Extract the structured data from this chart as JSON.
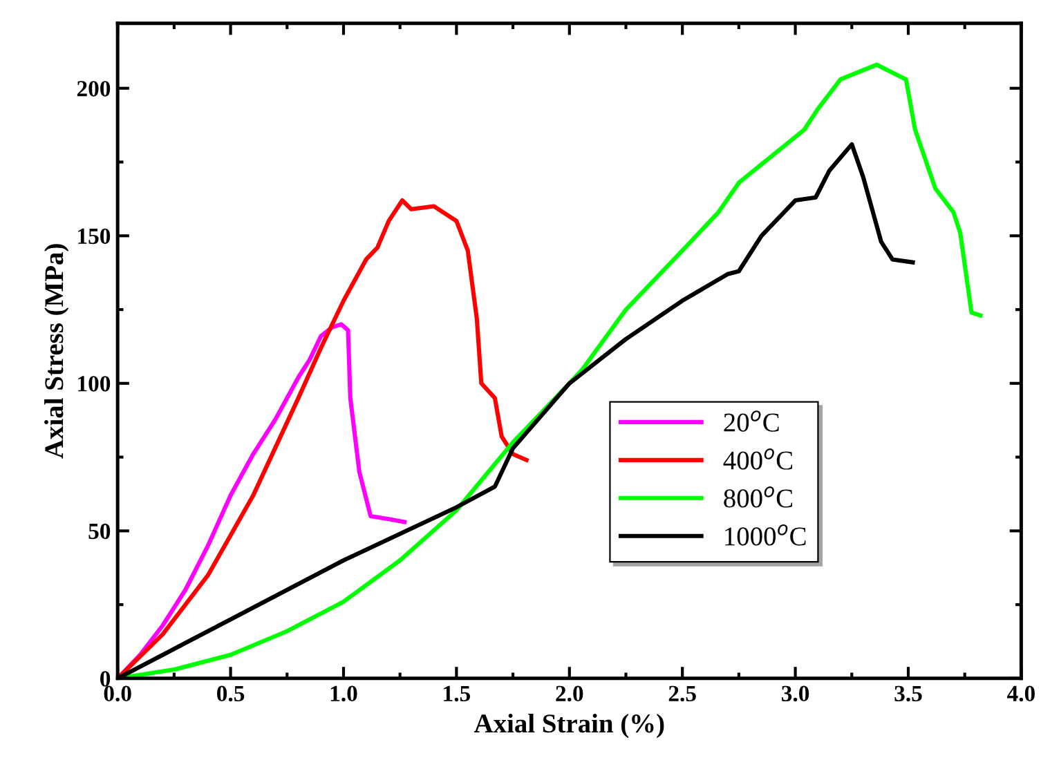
{
  "chart_data": {
    "type": "line",
    "xlabel": "Axial Strain (%)",
    "ylabel": "Axial Stress (MPa)",
    "xlim": [
      0,
      4.0
    ],
    "ylim": [
      0,
      222
    ],
    "xticks": [
      {
        "value": 0,
        "label": "0.0"
      },
      {
        "value": 0.5,
        "label": "0.5"
      },
      {
        "value": 1,
        "label": "1.0"
      },
      {
        "value": 1.5,
        "label": "1.5"
      },
      {
        "value": 2,
        "label": "2.0"
      },
      {
        "value": 2.5,
        "label": "2.5"
      },
      {
        "value": 3,
        "label": "3.0"
      },
      {
        "value": 3.5,
        "label": "3.5"
      },
      {
        "value": 4,
        "label": "4.0"
      }
    ],
    "yticks": [
      0,
      50,
      100,
      150,
      200
    ],
    "grid": false,
    "legend": "center right",
    "marker": "none",
    "line_style": "solid",
    "series": [
      {
        "name": "20$^{o}$C",
        "color": "#ff00ff",
        "x": [
          0,
          0.1,
          0.2,
          0.3,
          0.4,
          0.5,
          0.6,
          0.7,
          0.8,
          0.85,
          0.9,
          0.95,
          0.99,
          1.02,
          1.03,
          1.07,
          1.12,
          1.2,
          1.27
        ],
        "values": [
          0,
          8,
          18,
          30,
          45,
          62,
          76,
          88,
          102,
          108,
          116,
          119,
          120,
          118,
          95,
          70,
          55,
          54,
          53
        ]
      },
      {
        "name": "400$^{o}$C",
        "color": "#ff0000",
        "x": [
          0,
          0.2,
          0.4,
          0.6,
          0.8,
          0.9,
          1.0,
          1.1,
          1.15,
          1.2,
          1.26,
          1.3,
          1.4,
          1.5,
          1.55,
          1.59,
          1.61,
          1.67,
          1.7,
          1.75,
          1.81
        ],
        "values": [
          0,
          15,
          35,
          62,
          95,
          112,
          128,
          142,
          146,
          155,
          162,
          159,
          160,
          155,
          145,
          122,
          100,
          95,
          82,
          76,
          74
        ]
      },
      {
        "name": "800$^{o}$C",
        "color": "#00ff00",
        "x": [
          0,
          0.25,
          0.5,
          0.75,
          1.0,
          1.25,
          1.5,
          1.75,
          2.0,
          2.06,
          2.25,
          2.5,
          2.66,
          2.75,
          3.04,
          3.1,
          3.2,
          3.36,
          3.49,
          3.53,
          3.62,
          3.7,
          3.73,
          3.78,
          3.82
        ],
        "values": [
          0,
          3,
          8,
          16,
          26,
          40,
          57,
          80,
          100,
          105,
          125,
          145,
          158,
          168,
          186,
          193,
          203,
          208,
          203,
          186,
          166,
          158,
          151,
          124,
          123
        ]
      },
      {
        "name": "1000$^{o}$C",
        "color": "#000000",
        "x": [
          0,
          0.2,
          0.5,
          1.0,
          1.5,
          1.67,
          1.75,
          2.0,
          2.25,
          2.5,
          2.7,
          2.75,
          2.85,
          3.0,
          3.09,
          3.15,
          3.25,
          3.3,
          3.38,
          3.43,
          3.52
        ],
        "values": [
          0,
          8,
          20,
          40,
          58,
          65,
          78,
          100,
          115,
          128,
          137,
          138,
          150,
          162,
          163,
          172,
          181,
          170,
          148,
          142,
          141
        ]
      }
    ]
  }
}
